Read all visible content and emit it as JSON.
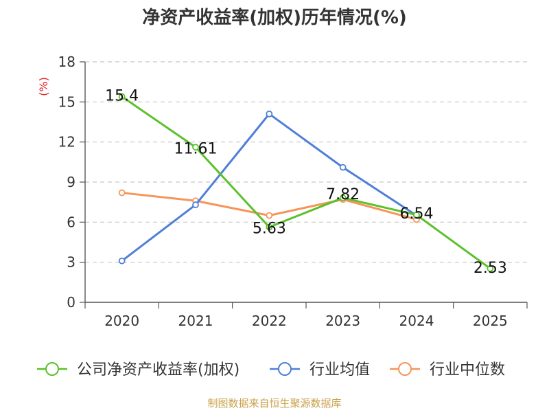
{
  "chart_data": {
    "type": "line",
    "title": "净资产收益率(加权)历年情况(%)",
    "ylabel": "(%)",
    "xlabel": "",
    "categories": [
      "2020",
      "2021",
      "2022",
      "2023",
      "2024",
      "2025"
    ],
    "ylim": [
      0,
      18
    ],
    "yticks": [
      0,
      3,
      6,
      9,
      12,
      15,
      18
    ],
    "grid": true,
    "legend_position": "bottom",
    "series": [
      {
        "name": "公司净资产收益率(加权)",
        "color": "#5ac12a",
        "values": [
          15.4,
          11.61,
          5.63,
          7.82,
          6.54,
          2.53
        ],
        "labels": [
          "15.4",
          "11.61",
          "5.63",
          "7.82",
          "6.54",
          "2.53"
        ]
      },
      {
        "name": "行业均值",
        "color": "#4f7fd9",
        "values": [
          3.1,
          7.3,
          14.1,
          10.1,
          6.5,
          null
        ]
      },
      {
        "name": "行业中位数",
        "color": "#f5955a",
        "values": [
          8.2,
          7.6,
          6.5,
          7.7,
          6.2,
          null
        ]
      }
    ],
    "source": "制图数据来自恒生聚源数据库",
    "source_color": "#c9a04a",
    "ylabel_color": "#e02020"
  }
}
